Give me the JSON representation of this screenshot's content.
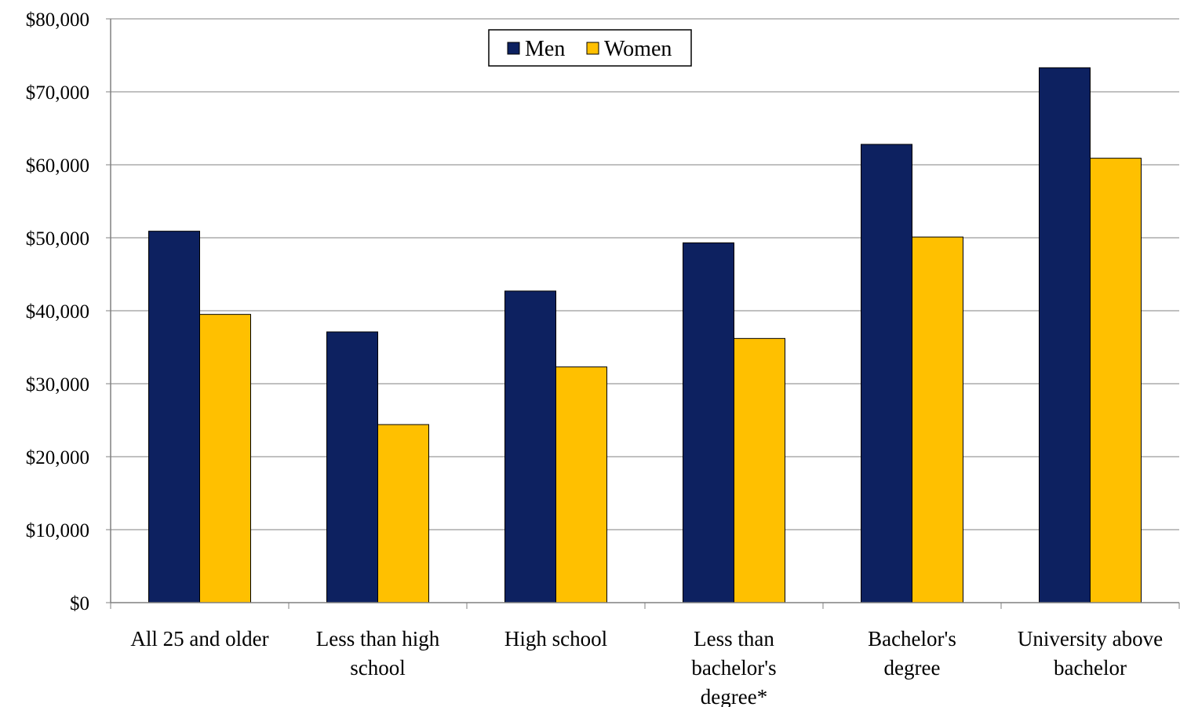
{
  "chart_data": {
    "type": "bar",
    "title": "",
    "xlabel": "",
    "ylabel": "",
    "categories": [
      [
        "All 25 and older"
      ],
      [
        "Less than high",
        "school"
      ],
      [
        "High school"
      ],
      [
        "Less than",
        "bachelor's",
        "degree*"
      ],
      [
        "Bachelor's",
        "degree"
      ],
      [
        "University above",
        "bachelor"
      ]
    ],
    "series": [
      {
        "name": "Men",
        "color": "#0d2160",
        "values": [
          50900,
          37100,
          42700,
          49300,
          62800,
          73300
        ]
      },
      {
        "name": "Women",
        "color": "#ffc000",
        "values": [
          39500,
          24400,
          32300,
          36200,
          50100,
          60900
        ]
      }
    ],
    "ylim": [
      0,
      80000
    ],
    "yticks": [
      0,
      10000,
      20000,
      30000,
      40000,
      50000,
      60000,
      70000,
      80000
    ],
    "ytick_labels": [
      "$0",
      "$10,000",
      "$20,000",
      "$30,000",
      "$40,000",
      "$50,000",
      "$60,000",
      "$70,000",
      "$80,000"
    ],
    "grid": true,
    "legend_position": "top-center"
  }
}
